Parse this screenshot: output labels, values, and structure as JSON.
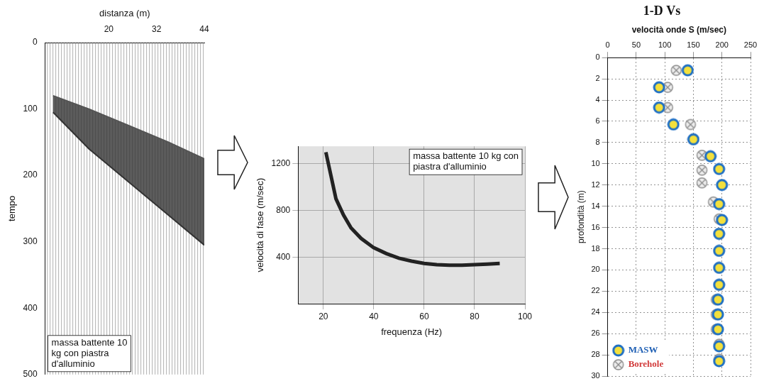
{
  "chart_data": [
    {
      "type": "line",
      "x_label": "distanza (m)",
      "y_label": "tempo",
      "annotation": "massa battente 10 kg con piastra d'alluminio",
      "xlim": [
        4,
        44
      ],
      "xticks": [
        20,
        32,
        44
      ],
      "ylim": [
        0,
        500
      ],
      "yticks": [
        0,
        100,
        200,
        300,
        400,
        500
      ],
      "grid": false,
      "x": [
        6,
        15,
        25,
        35,
        44
      ],
      "series": [
        {
          "color": "#555555",
          "values": [
            80,
            100,
            125,
            150,
            175
          ]
        },
        {
          "color": "#333333",
          "values": [
            105,
            160,
            210,
            260,
            305
          ]
        }
      ]
    },
    {
      "type": "line",
      "x_label": "frequenza (Hz)",
      "y_label": "velocità di fase (m/sec)",
      "annotation": "massa battente 10 kg con piastra d'alluminio",
      "xlim": [
        10,
        100
      ],
      "xticks": [
        20,
        40,
        60,
        80,
        100
      ],
      "ylim": [
        0,
        1350
      ],
      "yticks": [
        400,
        800,
        1200
      ],
      "grid": true,
      "x": [
        21,
        23,
        25,
        28,
        31,
        35,
        40,
        45,
        50,
        55,
        60,
        65,
        70,
        75,
        80,
        85,
        90
      ],
      "series": [
        {
          "color": "#222222",
          "values": [
            1300,
            1100,
            900,
            760,
            650,
            560,
            480,
            430,
            390,
            365,
            345,
            335,
            330,
            330,
            335,
            340,
            345
          ]
        }
      ]
    },
    {
      "type": "scatter",
      "title": "1-D Vs",
      "x_label": "velocità onde S (m/sec)",
      "y_label": "profondità (m)",
      "xlim": [
        0,
        250
      ],
      "xticks": [
        0,
        50,
        100,
        150,
        200,
        250
      ],
      "ylim": [
        0,
        30
      ],
      "yticks": [
        0,
        2,
        4,
        6,
        8,
        10,
        12,
        14,
        16,
        18,
        20,
        22,
        24,
        26,
        28,
        30
      ],
      "grid": true,
      "legend": "lower left",
      "series": [
        {
          "name": "MASW",
          "color": "#1e6fc4",
          "marker": "circle",
          "x": [
            140,
            90,
            90,
            115,
            150,
            180,
            195,
            200,
            195,
            200,
            195,
            195,
            195,
            195,
            193,
            193,
            193,
            195,
            195
          ],
          "values": [
            1.2,
            2.8,
            4.7,
            6.3,
            7.7,
            9.3,
            10.5,
            12,
            13.8,
            15.3,
            16.6,
            18.2,
            19.8,
            21.4,
            22.8,
            24.2,
            25.6,
            27.2,
            28.6
          ]
        },
        {
          "name": "Borehole",
          "color": "#8a8a8a",
          "marker": "crossed_circle",
          "x": [
            120,
            105,
            105,
            145,
            150,
            165,
            165,
            165,
            185,
            195,
            195,
            195,
            195,
            195,
            190,
            190,
            190,
            195,
            195
          ],
          "values": [
            1.2,
            2.8,
            4.7,
            6.3,
            7.7,
            9.2,
            10.6,
            11.8,
            13.6,
            15.2,
            16.6,
            18.2,
            19.8,
            21.4,
            22.8,
            24.2,
            25.6,
            27.0,
            28.4
          ]
        }
      ]
    }
  ]
}
